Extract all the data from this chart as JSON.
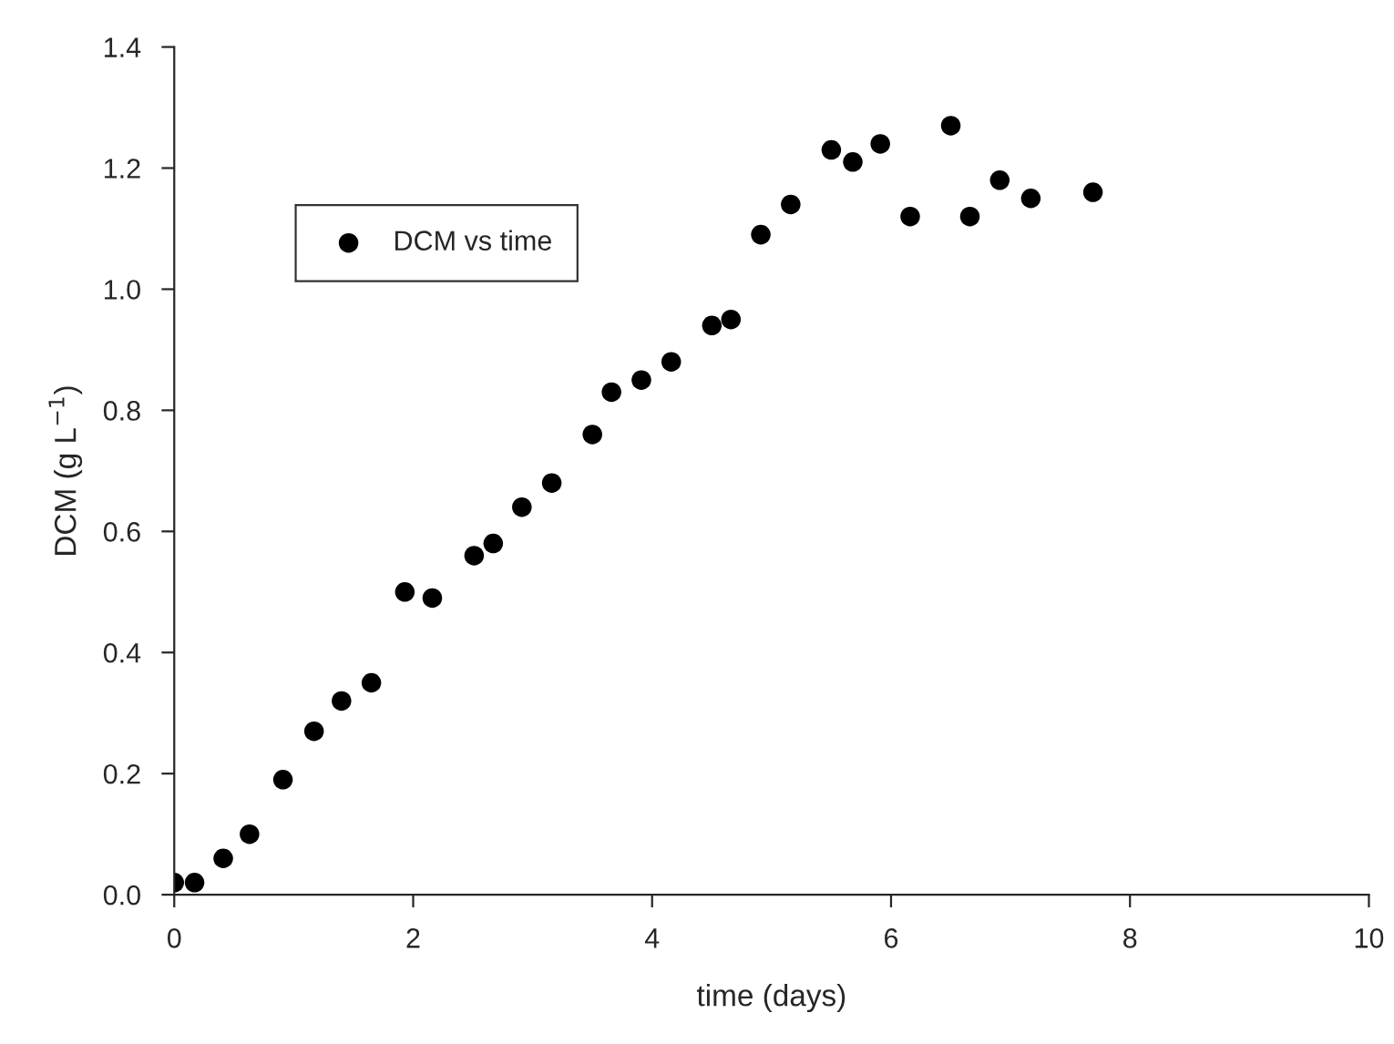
{
  "chart_data": {
    "type": "scatter",
    "xlabel": "time (days)",
    "ylabel": "DCM (g L$^{−1}$)",
    "x": [
      0,
      0.17,
      0.41,
      0.63,
      0.91,
      1.17,
      1.4,
      1.65,
      1.93,
      2.16,
      2.51,
      2.67,
      2.91,
      3.16,
      3.5,
      3.66,
      3.91,
      4.16,
      4.5,
      4.66,
      4.91,
      5.16,
      5.5,
      5.68,
      5.91,
      6.16,
      6.5,
      6.66,
      6.91,
      7.17,
      7.69
    ],
    "series": [
      {
        "name": "DCM vs time",
        "color": "#000000",
        "values": [
          0.02,
          0.02,
          0.06,
          0.1,
          0.19,
          0.27,
          0.32,
          0.35,
          0.5,
          0.49,
          0.56,
          0.58,
          0.64,
          0.68,
          0.76,
          0.83,
          0.85,
          0.88,
          0.94,
          0.95,
          1.09,
          1.14,
          1.23,
          1.21,
          1.24,
          1.12,
          1.27,
          1.12,
          1.18,
          1.15,
          1.16
        ]
      }
    ],
    "xlim": [
      0,
      10
    ],
    "xticks": [
      0,
      2,
      4,
      6,
      8,
      10
    ],
    "ylim": [
      0,
      1.4
    ],
    "yticks": [
      {
        "value": 0,
        "label": "0.0"
      },
      {
        "value": 0.2,
        "label": "0.2"
      },
      {
        "value": 0.4,
        "label": "0.4"
      },
      {
        "value": 0.6,
        "label": "0.6"
      },
      {
        "value": 0.8,
        "label": "0.8"
      },
      {
        "value": 1.0,
        "label": "1.0"
      },
      {
        "value": 1.2,
        "label": "1.2"
      },
      {
        "value": 1.4,
        "label": "1.4"
      }
    ],
    "legend": "top left",
    "marker": "circle",
    "grid": false
  }
}
